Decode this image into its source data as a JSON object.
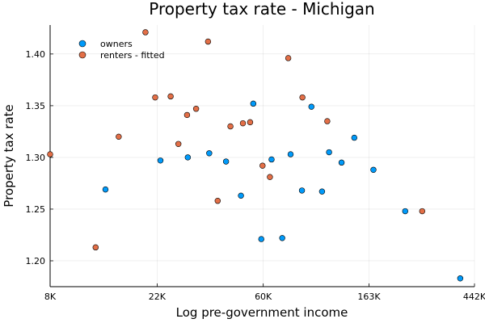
{
  "chart_data": {
    "type": "scatter",
    "title": "Property tax rate - Michigan",
    "xlabel": "Log pre-government income",
    "ylabel": "Property tax rate",
    "x_scale": "log",
    "xlim": [
      8000,
      442000
    ],
    "ylim": [
      1.175,
      1.428
    ],
    "x_ticks": [
      {
        "value": 8000,
        "label": "8K"
      },
      {
        "value": 22000,
        "label": "22K"
      },
      {
        "value": 60000,
        "label": "60K"
      },
      {
        "value": 163000,
        "label": "163K"
      },
      {
        "value": 442000,
        "label": "442K"
      }
    ],
    "y_ticks": [
      {
        "value": 1.2,
        "label": "1.20"
      },
      {
        "value": 1.25,
        "label": "1.25"
      },
      {
        "value": 1.3,
        "label": "1.30"
      },
      {
        "value": 1.35,
        "label": "1.35"
      },
      {
        "value": 1.4,
        "label": "1.40"
      }
    ],
    "grid": true,
    "legend": {
      "position": "top-left"
    },
    "series": [
      {
        "name": "owners",
        "color": "#009AFA",
        "points": [
          {
            "x": 13500,
            "y": 1.269
          },
          {
            "x": 22700,
            "y": 1.297
          },
          {
            "x": 29400,
            "y": 1.3
          },
          {
            "x": 36000,
            "y": 1.304
          },
          {
            "x": 42200,
            "y": 1.296
          },
          {
            "x": 48600,
            "y": 1.263
          },
          {
            "x": 54600,
            "y": 1.352
          },
          {
            "x": 58900,
            "y": 1.221
          },
          {
            "x": 64900,
            "y": 1.298
          },
          {
            "x": 71800,
            "y": 1.222
          },
          {
            "x": 77700,
            "y": 1.303
          },
          {
            "x": 86500,
            "y": 1.268
          },
          {
            "x": 94600,
            "y": 1.349
          },
          {
            "x": 104600,
            "y": 1.267
          },
          {
            "x": 111800,
            "y": 1.305
          },
          {
            "x": 125800,
            "y": 1.295
          },
          {
            "x": 141900,
            "y": 1.319
          },
          {
            "x": 170000,
            "y": 1.288
          },
          {
            "x": 229600,
            "y": 1.248
          },
          {
            "x": 386300,
            "y": 1.183
          }
        ]
      },
      {
        "name": "renters - fitted",
        "color": "#E36F47",
        "points": [
          {
            "x": 8000,
            "y": 1.303
          },
          {
            "x": 12300,
            "y": 1.213
          },
          {
            "x": 15300,
            "y": 1.32
          },
          {
            "x": 19700,
            "y": 1.421
          },
          {
            "x": 21600,
            "y": 1.358
          },
          {
            "x": 25000,
            "y": 1.359
          },
          {
            "x": 26900,
            "y": 1.313
          },
          {
            "x": 29200,
            "y": 1.341
          },
          {
            "x": 31800,
            "y": 1.347
          },
          {
            "x": 35600,
            "y": 1.412
          },
          {
            "x": 39000,
            "y": 1.258
          },
          {
            "x": 44000,
            "y": 1.33
          },
          {
            "x": 49500,
            "y": 1.333
          },
          {
            "x": 53000,
            "y": 1.334
          },
          {
            "x": 59600,
            "y": 1.292
          },
          {
            "x": 63900,
            "y": 1.281
          },
          {
            "x": 76000,
            "y": 1.396
          },
          {
            "x": 86900,
            "y": 1.358
          },
          {
            "x": 109900,
            "y": 1.335
          },
          {
            "x": 269600,
            "y": 1.248
          }
        ]
      }
    ]
  }
}
